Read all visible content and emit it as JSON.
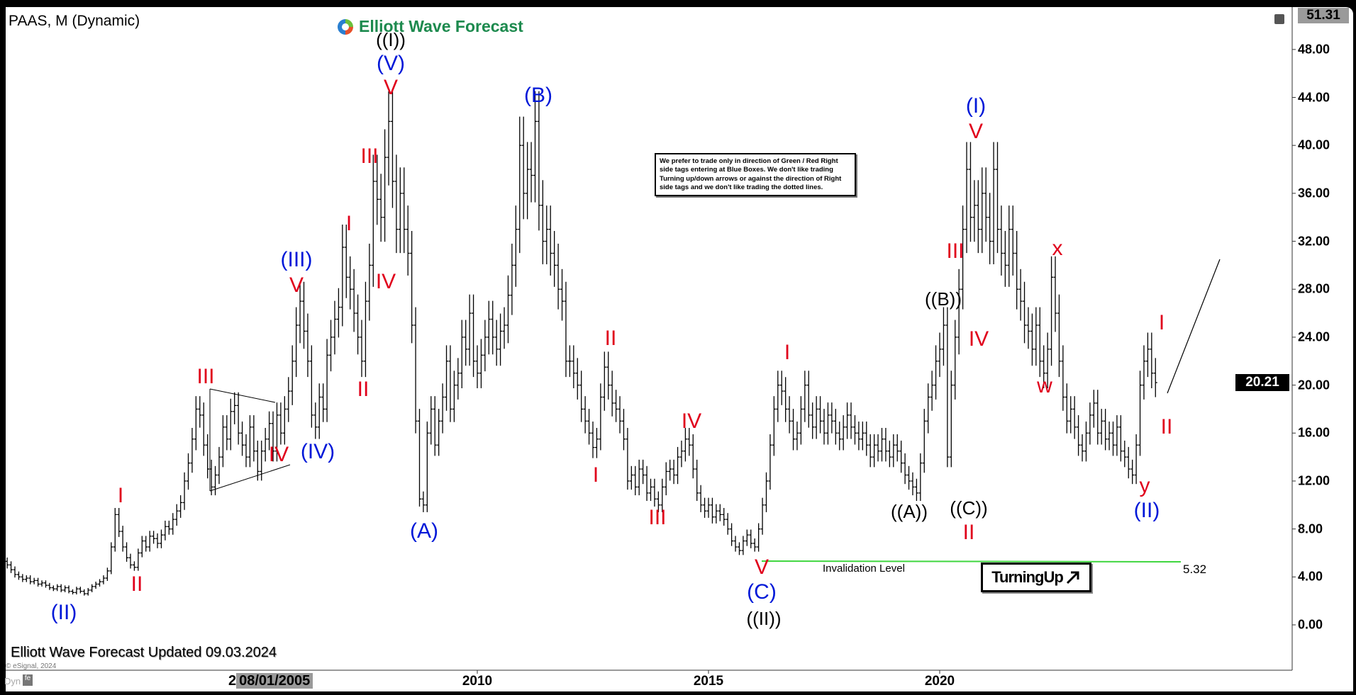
{
  "header": {
    "title": "PAAS, M (Dynamic)",
    "logo_text": "Elliott Wave Forecast"
  },
  "note": "We prefer to trade only in direction of Green / Red Right side tags entering at Blue Boxes. We don't like trading Turning up/down arrows or against the direction of Right side tags and we don't like trading the dotted lines.",
  "turning_up": "TurningUp",
  "turning_up_icon": "arrow-up-right-icon",
  "invalidation": {
    "label": "Invalidation Level",
    "value": "5.32"
  },
  "footer": {
    "updated": "Elliott Wave Forecast Updated 09.03.2024",
    "copyright": "© eSignal, 2024",
    "dyn": "Dyn",
    "crosshair_date_prefix": "2",
    "crosshair_date": "08/01/2005"
  },
  "colors": {
    "red": "#e0001b",
    "blue": "#0018d8",
    "black": "#000000",
    "green": "#3fd63f",
    "logo": "#1d8a4e"
  },
  "chart_data": {
    "type": "ohlc",
    "symbol": "PAAS",
    "interval": "M",
    "x_ticks": [
      "2010",
      "2015",
      "2020"
    ],
    "y_ticks": [
      "0.00",
      "4.00",
      "8.00",
      "12.00",
      "16.00",
      "20.00",
      "24.00",
      "28.00",
      "32.00",
      "36.00",
      "40.00",
      "44.00",
      "48.00"
    ],
    "ylim": [
      -3,
      52
    ],
    "top_price": "51.31",
    "last_price": "20.21",
    "invalidation_level": 5.32,
    "monthly_close": {
      "1999": [
        5.3,
        5.0,
        4.6
      ],
      "2000": [
        4.2,
        4.0,
        3.8,
        3.9,
        3.6,
        3.7,
        3.4,
        3.5,
        3.3,
        3.1,
        3.0,
        3.2
      ],
      "2001": [
        2.9,
        3.1,
        2.8,
        2.7,
        3.0,
        2.8,
        2.6,
        2.9,
        3.2,
        3.4,
        3.6,
        3.9
      ],
      "2002": [
        4.5,
        6.5,
        9.2,
        7.8,
        6.5,
        5.6,
        5.0,
        4.8,
        6.0,
        7.0,
        6.5,
        7.4
      ],
      "2003": [
        7.2,
        6.8,
        7.5,
        8.2,
        8.0,
        8.8,
        9.5,
        10.2,
        12.0,
        13.5,
        15.5,
        18.0
      ],
      "2004": [
        17.5,
        15.0,
        13.0,
        11.5,
        12.5,
        14.0,
        16.5,
        15.5,
        17.8,
        18.3,
        16.0,
        15.0
      ],
      "2005": [
        14.0,
        16.5,
        14.5,
        12.8,
        14.5,
        15.5,
        16.8,
        14.5,
        17.5,
        16.0,
        18.0,
        19.5
      ],
      "2006": [
        22.0,
        25.0,
        27.0,
        24.5,
        22.0,
        17.5,
        16.5,
        19.0,
        18.0,
        22.5,
        24.0,
        25.5
      ],
      "2007": [
        26.5,
        31.5,
        29.0,
        28.0,
        26.0,
        24.0,
        22.0,
        27.0,
        30.0,
        37.0,
        35.5,
        34.0
      ],
      "2008": [
        39.0,
        42.0,
        37.0,
        33.0,
        36.0,
        33.0,
        31.0,
        25.0,
        17.0,
        10.5,
        10.0,
        16.0
      ],
      "2009": [
        18.0,
        15.0,
        17.0,
        19.0,
        22.0,
        18.0,
        20.0,
        21.0,
        24.0,
        23.0,
        26.0,
        22.0
      ],
      "2010": [
        21.0,
        22.5,
        24.0,
        25.5,
        24.0,
        23.0,
        24.5,
        25.0,
        27.5,
        30.0,
        33.0,
        40.0
      ],
      "2011": [
        36.0,
        38.0,
        37.5,
        42.0,
        35.0,
        32.0,
        33.0,
        31.0,
        30.0,
        28.0,
        27.0,
        22.0
      ],
      "2012": [
        22.0,
        21.0,
        20.0,
        18.0,
        17.0,
        16.0,
        14.8,
        15.5,
        19.0,
        21.5,
        20.0,
        18.5
      ],
      "2013": [
        18.0,
        17.0,
        15.5,
        12.0,
        12.5,
        11.5,
        13.0,
        12.5,
        11.0,
        11.5,
        10.5,
        10.0
      ],
      "2014": [
        11.5,
        12.8,
        13.0,
        12.5,
        14.0,
        14.5,
        15.5,
        15.0,
        13.0,
        11.0,
        10.0,
        9.5
      ],
      "2015": [
        10.0,
        9.0,
        9.5,
        9.2,
        8.8,
        8.0,
        7.0,
        6.5,
        6.2,
        7.0,
        7.5,
        6.8
      ],
      "2016": [
        6.5,
        8.0,
        10.0,
        12.0,
        15.0,
        18.0,
        20.0,
        19.5,
        18.0,
        17.0,
        15.5,
        16.0
      ],
      "2017": [
        18.0,
        20.0,
        17.5,
        16.5,
        18.0,
        17.0,
        16.0,
        17.5,
        17.0,
        16.0,
        15.5,
        16.5
      ],
      "2018": [
        17.5,
        16.5,
        16.0,
        15.5,
        16.0,
        15.0,
        14.0,
        15.0,
        14.5,
        15.5,
        14.5,
        14.0
      ],
      "2019": [
        15.0,
        14.5,
        13.5,
        12.5,
        12.0,
        11.5,
        11.0,
        13.5,
        17.0,
        19.0,
        20.0,
        22.0
      ],
      "2020": [
        23.0,
        25.0,
        14.0,
        20.0,
        24.0,
        28.0,
        33.0,
        38.0,
        34.0,
        35.0,
        33.0,
        36.0
      ],
      "2021": [
        34.0,
        32.0,
        38.0,
        33.0,
        31.0,
        30.0,
        33.0,
        31.0,
        28.0,
        27.0,
        25.0,
        24.5
      ],
      "2022": [
        23.0,
        25.0,
        22.0,
        21.0,
        23.0,
        29.0,
        26.0,
        22.0,
        19.0,
        17.0,
        18.0,
        16.5
      ],
      "2023": [
        15.0,
        14.5,
        16.0,
        17.5,
        18.5,
        16.0,
        17.0,
        15.5,
        16.0,
        15.0,
        16.5,
        14.5
      ],
      "2024": [
        14.0,
        13.0,
        12.5,
        15.0,
        20.0,
        22.0,
        23.0,
        21.0,
        20.21
      ]
    },
    "annotations": [
      {
        "text": "((I))",
        "color": "black"
      },
      {
        "text": "(V)",
        "color": "blue"
      },
      {
        "text": "V",
        "color": "red"
      },
      {
        "text": "(B)",
        "color": "blue"
      },
      {
        "text": "(I)",
        "color": "blue"
      },
      {
        "text": "V",
        "color": "red"
      },
      {
        "text": "III",
        "color": "red"
      },
      {
        "text": "I",
        "color": "red"
      },
      {
        "text": "(III)",
        "color": "blue"
      },
      {
        "text": "V",
        "color": "red"
      },
      {
        "text": "IV",
        "color": "red"
      },
      {
        "text": "II",
        "color": "red"
      },
      {
        "text": "III",
        "color": "red"
      },
      {
        "text": "IV",
        "color": "red"
      },
      {
        "text": "(IV)",
        "color": "blue"
      },
      {
        "text": "I",
        "color": "red"
      },
      {
        "text": "II",
        "color": "red"
      },
      {
        "text": "(II)",
        "color": "blue"
      },
      {
        "text": "(A)",
        "color": "blue"
      },
      {
        "text": "II",
        "color": "red"
      },
      {
        "text": "I",
        "color": "red"
      },
      {
        "text": "IV",
        "color": "red"
      },
      {
        "text": "III",
        "color": "red"
      },
      {
        "text": "I",
        "color": "red"
      },
      {
        "text": "V",
        "color": "red"
      },
      {
        "text": "(C)",
        "color": "blue"
      },
      {
        "text": "((II))",
        "color": "black"
      },
      {
        "text": "((B))",
        "color": "black"
      },
      {
        "text": "III",
        "color": "red"
      },
      {
        "text": "IV",
        "color": "red"
      },
      {
        "text": "((A))",
        "color": "black"
      },
      {
        "text": "((C))",
        "color": "black"
      },
      {
        "text": "II",
        "color": "red"
      },
      {
        "text": "x",
        "color": "red"
      },
      {
        "text": "w",
        "color": "red"
      },
      {
        "text": "I",
        "color": "red"
      },
      {
        "text": "II",
        "color": "red"
      },
      {
        "text": "y",
        "color": "red"
      },
      {
        "text": "(II)",
        "color": "blue"
      }
    ]
  }
}
